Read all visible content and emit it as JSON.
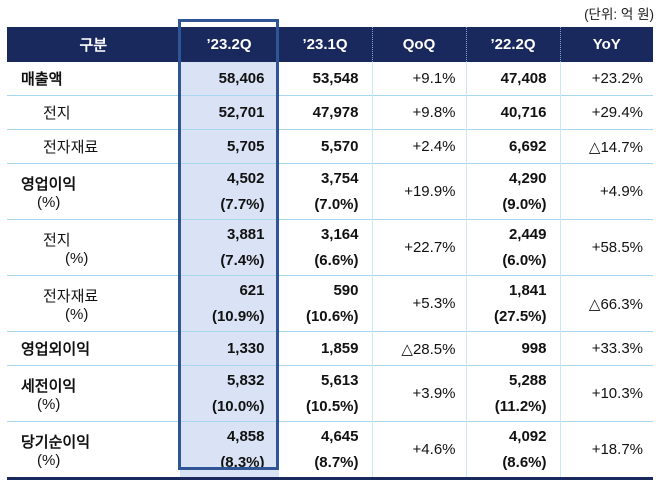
{
  "unit_label": "(단위: 억 원)",
  "colors": {
    "header_bg": "#19295E",
    "highlight_border": "#2F5597",
    "highlight_fill": "#DAE3F5",
    "grid_line": "#A8D6EE"
  },
  "table": {
    "columns": [
      "구분",
      "’23.2Q",
      "’23.1Q",
      "QoQ",
      "’22.2Q",
      "YoY"
    ],
    "highlight_column": "’23.2Q",
    "rows": [
      {
        "label": "매출액",
        "pct": "",
        "indent": false,
        "v232": "58,406",
        "p232": "",
        "v231": "53,548",
        "p231": "",
        "qoq": "+9.1%",
        "v222": "47,408",
        "p222": "",
        "yoy": "+23.2%"
      },
      {
        "label": "전지",
        "pct": "",
        "indent": true,
        "v232": "52,701",
        "p232": "",
        "v231": "47,978",
        "p231": "",
        "qoq": "+9.8%",
        "v222": "40,716",
        "p222": "",
        "yoy": "+29.4%"
      },
      {
        "label": "전자재료",
        "pct": "",
        "indent": true,
        "v232": "5,705",
        "p232": "",
        "v231": "5,570",
        "p231": "",
        "qoq": "+2.4%",
        "v222": "6,692",
        "p222": "",
        "yoy": "△14.7%"
      },
      {
        "label": "영업이익",
        "pct": "(%)",
        "indent": false,
        "v232": "4,502",
        "p232": "(7.7%)",
        "v231": "3,754",
        "p231": "(7.0%)",
        "qoq": "+19.9%",
        "v222": "4,290",
        "p222": "(9.0%)",
        "yoy": "+4.9%"
      },
      {
        "label": "전지",
        "pct": "(%)",
        "indent": true,
        "v232": "3,881",
        "p232": "(7.4%)",
        "v231": "3,164",
        "p231": "(6.6%)",
        "qoq": "+22.7%",
        "v222": "2,449",
        "p222": "(6.0%)",
        "yoy": "+58.5%"
      },
      {
        "label": "전자재료",
        "pct": "(%)",
        "indent": true,
        "v232": "621",
        "p232": "(10.9%)",
        "v231": "590",
        "p231": "(10.6%)",
        "qoq": "+5.3%",
        "v222": "1,841",
        "p222": "(27.5%)",
        "yoy": "△66.3%"
      },
      {
        "label": "영업외이익",
        "pct": "",
        "indent": false,
        "v232": "1,330",
        "p232": "",
        "v231": "1,859",
        "p231": "",
        "qoq": "△28.5%",
        "v222": "998",
        "p222": "",
        "yoy": "+33.3%"
      },
      {
        "label": "세전이익",
        "pct": "(%)",
        "indent": false,
        "v232": "5,832",
        "p232": "(10.0%)",
        "v231": "5,613",
        "p231": "(10.5%)",
        "qoq": "+3.9%",
        "v222": "5,288",
        "p222": "(11.2%)",
        "yoy": "+10.3%"
      },
      {
        "label": "당기순이익",
        "pct": "(%)",
        "indent": false,
        "v232": "4,858",
        "p232": "(8.3%)",
        "v231": "4,645",
        "p231": "(8.7%)",
        "qoq": "+4.6%",
        "v222": "4,092",
        "p222": "(8.6%)",
        "yoy": "+18.7%"
      }
    ]
  }
}
